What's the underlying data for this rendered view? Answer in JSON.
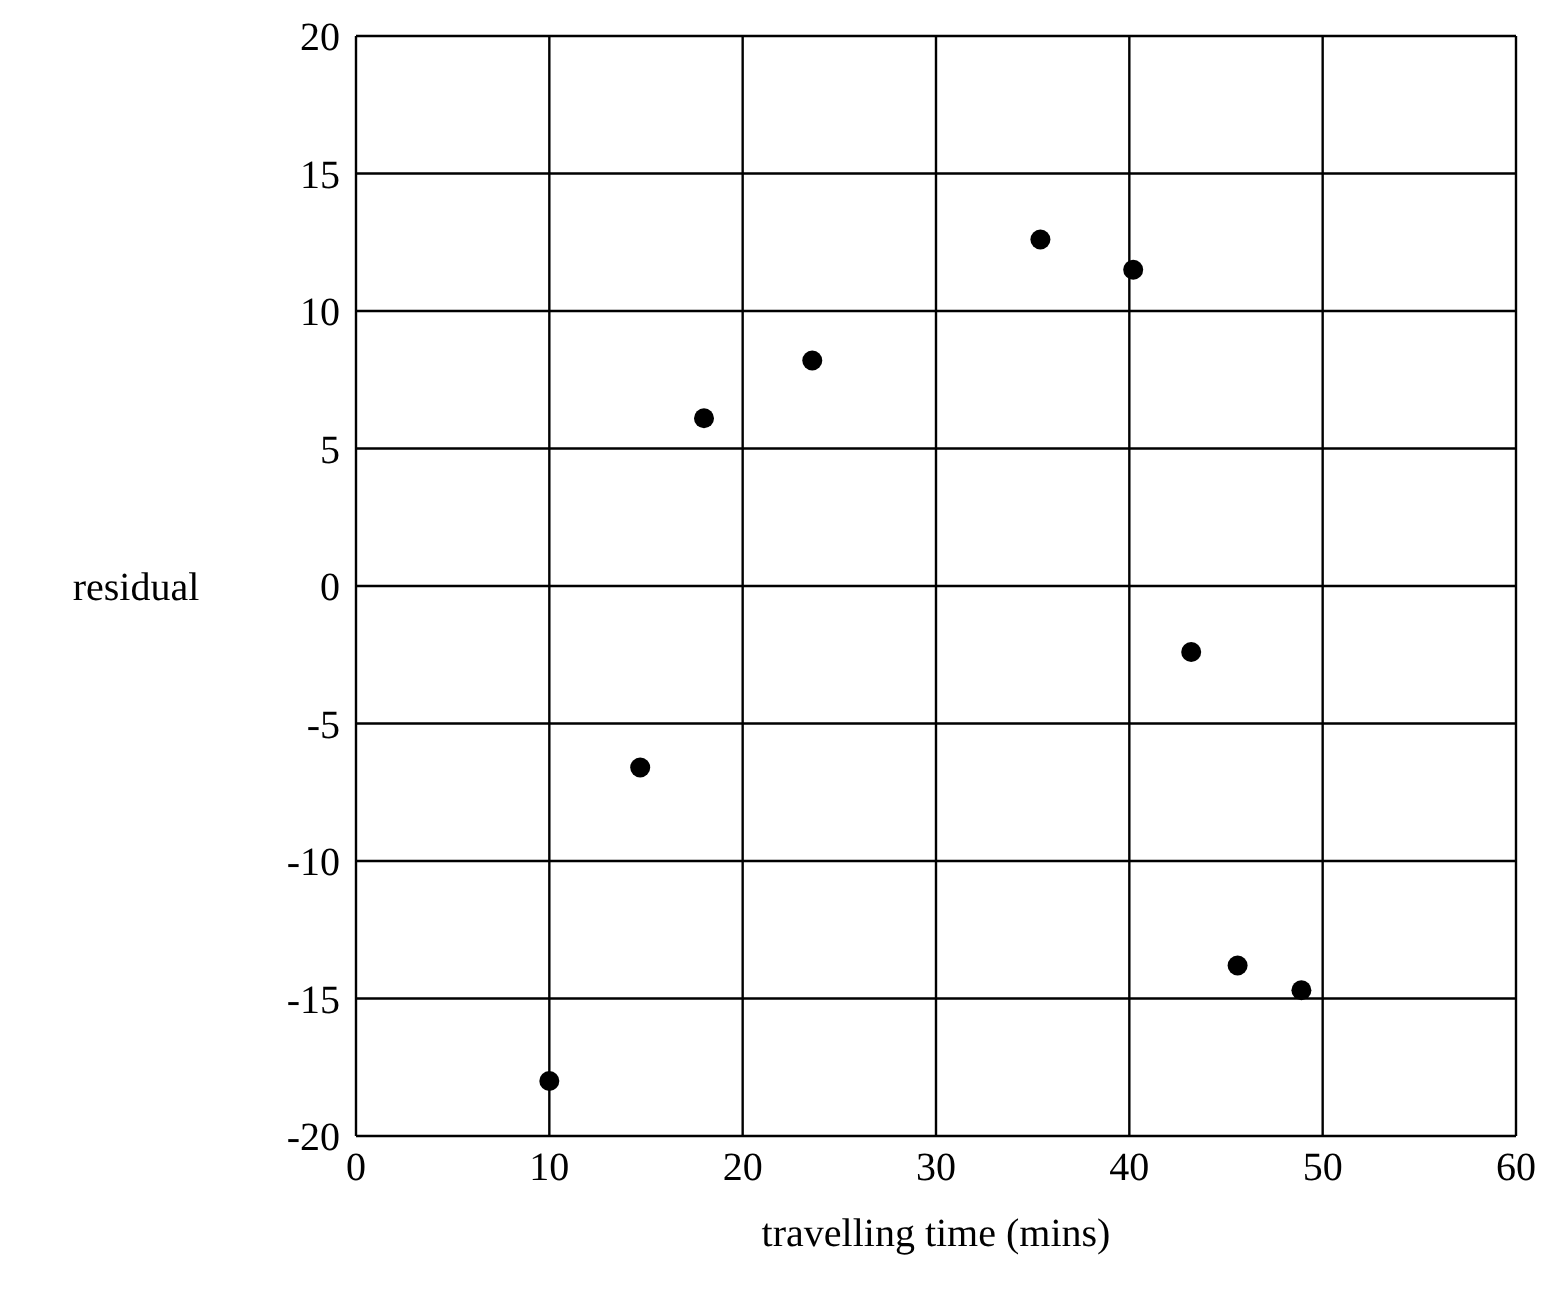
{
  "chart_data": {
    "type": "scatter",
    "xlabel": "travelling time (mins)",
    "ylabel": "residual",
    "x": [
      10,
      14.7,
      18,
      23.6,
      35.4,
      40.2,
      43.2,
      45.6,
      48.9
    ],
    "series": [
      {
        "color": "#000000",
        "values": [
          -18,
          -6.6,
          6.1,
          8.2,
          12.6,
          11.5,
          -2.4,
          -13.8,
          -14.7
        ]
      }
    ],
    "xlim": [
      0,
      60
    ],
    "xticks": [
      0,
      10,
      20,
      30,
      40,
      50,
      60
    ],
    "ylim": [
      -20,
      20
    ],
    "yticks": [
      -20,
      -15,
      -10,
      -5,
      0,
      5,
      10,
      15,
      20
    ],
    "grid": true,
    "marker": "circle",
    "legend": false
  }
}
